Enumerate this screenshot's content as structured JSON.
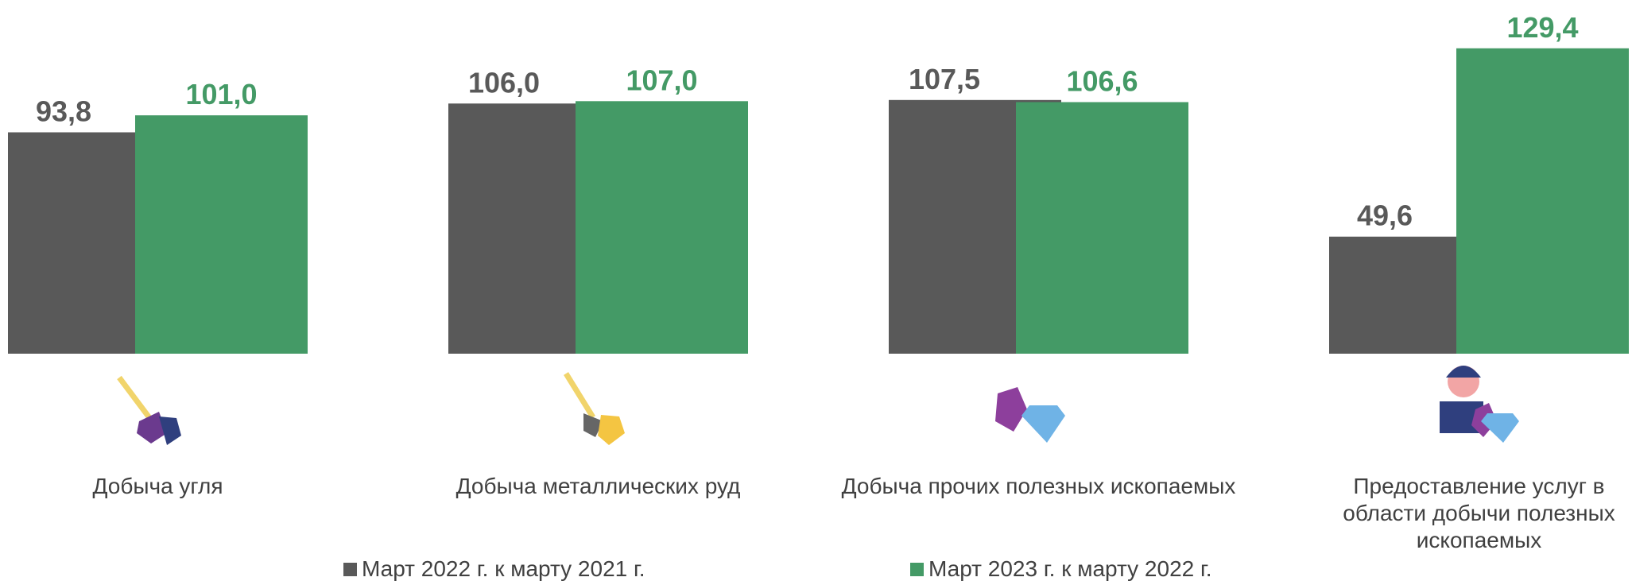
{
  "chart_data": {
    "type": "bar",
    "categories": [
      "Добыча угля",
      "Добыча металлических руд",
      "Добыча прочих полезных ископаемых",
      "Предоставление услуг в области добычи полезных ископаемых"
    ],
    "series": [
      {
        "name": "Март 2022 г. к марту 2021 г.",
        "color": "#595959",
        "values": [
          93.8,
          106.0,
          107.5,
          49.6
        ],
        "value_labels": [
          "93,8",
          "106,0",
          "107,5",
          "49,6"
        ]
      },
      {
        "name": "Март 2023 г. к марту 2022 г.",
        "color": "#449a66",
        "values": [
          101.0,
          107.0,
          106.6,
          129.4
        ],
        "value_labels": [
          "101,0",
          "107,0",
          "106,6",
          "129,4"
        ]
      }
    ],
    "ylim": [
      0,
      130
    ],
    "legend": "bottom"
  }
}
